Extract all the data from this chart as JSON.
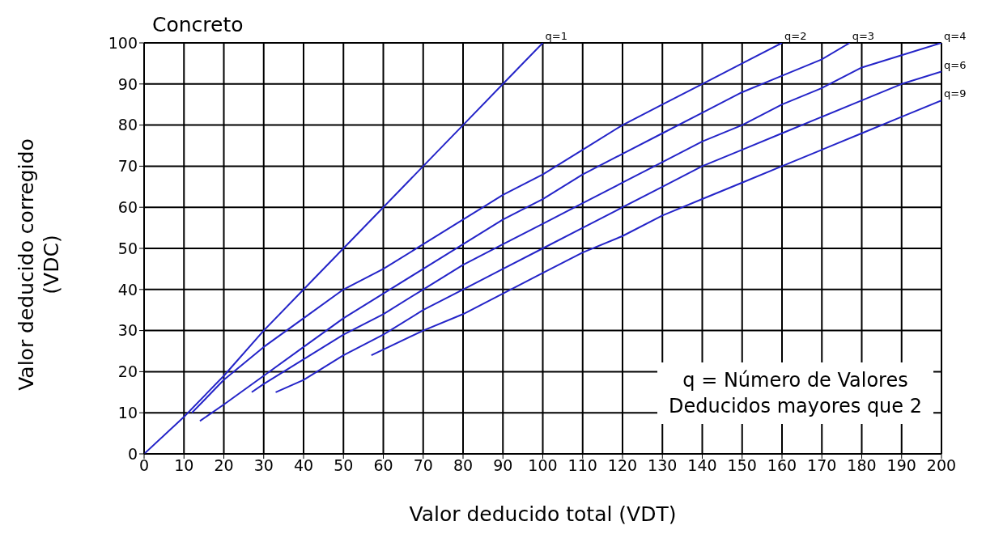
{
  "chart_data": {
    "type": "line",
    "title": "Concreto",
    "xlabel": "Valor deducido total (VDT)",
    "ylabel": "Valor deducido corregido\n(VDC)",
    "annotations": [
      "q = Número de Valores\nDeducidos mayores que 2"
    ],
    "xlim": [
      0,
      200
    ],
    "ylim": [
      0,
      100
    ],
    "xticks": [
      0,
      10,
      20,
      30,
      40,
      50,
      60,
      70,
      80,
      90,
      100,
      110,
      120,
      130,
      140,
      150,
      160,
      170,
      180,
      190,
      200
    ],
    "yticks": [
      0,
      10,
      20,
      30,
      40,
      50,
      60,
      70,
      80,
      90,
      100
    ],
    "grid": true,
    "legend": false,
    "marker": "none",
    "line_style": "solid",
    "series": [
      {
        "name": "q=1",
        "color": "#2424c8",
        "x": [
          0,
          10,
          20,
          30,
          40,
          50,
          60,
          70,
          80,
          90,
          100
        ],
        "values": [
          0,
          9,
          19,
          30,
          40,
          50,
          60,
          70,
          80,
          90,
          100
        ]
      },
      {
        "name": "q=2",
        "color": "#2424c8",
        "x": [
          12,
          20,
          30,
          40,
          50,
          60,
          70,
          80,
          90,
          100,
          110,
          120,
          130,
          140,
          150,
          160
        ],
        "values": [
          10,
          18,
          26,
          33,
          40,
          45,
          51,
          57,
          63,
          68,
          74,
          80,
          85,
          90,
          95,
          100
        ]
      },
      {
        "name": "q=3",
        "color": "#2424c8",
        "x": [
          14,
          20,
          30,
          40,
          50,
          60,
          70,
          80,
          90,
          100,
          110,
          120,
          130,
          140,
          150,
          160,
          170,
          177
        ],
        "values": [
          8,
          12,
          19,
          26,
          33,
          39,
          45,
          51,
          57,
          62,
          68,
          73,
          78,
          83,
          88,
          92,
          96,
          100
        ]
      },
      {
        "name": "q=4",
        "color": "#2424c8",
        "x": [
          27,
          30,
          40,
          50,
          60,
          70,
          80,
          90,
          100,
          110,
          120,
          130,
          140,
          150,
          160,
          170,
          180,
          190,
          200
        ],
        "values": [
          15,
          17,
          23,
          29,
          34,
          40,
          46,
          51,
          56,
          61,
          66,
          71,
          76,
          80,
          85,
          89,
          94,
          97,
          100
        ]
      },
      {
        "name": "q=6",
        "color": "#2424c8",
        "x": [
          33,
          40,
          50,
          60,
          70,
          80,
          90,
          100,
          110,
          120,
          130,
          140,
          150,
          160,
          170,
          180,
          190,
          200
        ],
        "values": [
          15,
          18,
          24,
          29,
          35,
          40,
          45,
          50,
          55,
          60,
          65,
          70,
          74,
          78,
          82,
          86,
          90,
          93
        ]
      },
      {
        "name": "q=9",
        "color": "#2424c8",
        "x": [
          57,
          70,
          80,
          90,
          100,
          110,
          120,
          130,
          140,
          150,
          160,
          170,
          180,
          190,
          200
        ],
        "values": [
          24,
          30,
          34,
          39,
          44,
          49,
          53,
          58,
          62,
          66,
          70,
          74,
          78,
          82,
          86
        ]
      }
    ]
  }
}
